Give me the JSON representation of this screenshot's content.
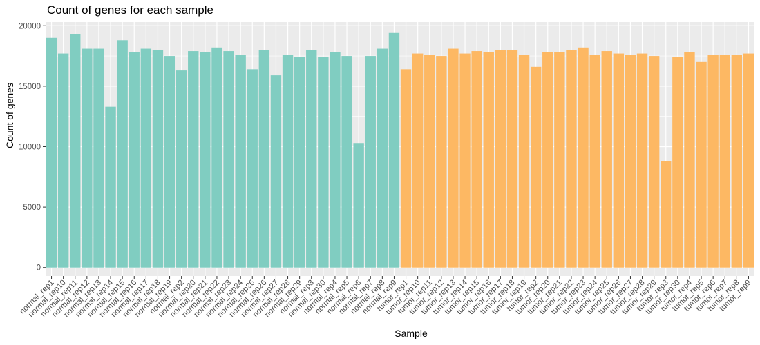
{
  "chart_data": {
    "type": "bar",
    "title": "Count of genes for each sample",
    "xlabel": "Sample",
    "ylabel": "Count of genes",
    "ylim": [
      -700,
      20300
    ],
    "yticks": [
      0,
      5000,
      10000,
      15000,
      20000
    ],
    "grid": true,
    "legend": "none",
    "categories": [
      "normal_rep1",
      "normal_rep10",
      "normal_rep11",
      "normal_rep12",
      "normal_rep13",
      "normal_rep14",
      "normal_rep15",
      "normal_rep16",
      "normal_rep17",
      "normal_rep18",
      "normal_rep19",
      "normal_rep2",
      "normal_rep20",
      "normal_rep21",
      "normal_rep22",
      "normal_rep23",
      "normal_rep24",
      "normal_rep25",
      "normal_rep26",
      "normal_rep27",
      "normal_rep28",
      "normal_rep29",
      "normal_rep3",
      "normal_rep30",
      "normal_rep4",
      "normal_rep5",
      "normal_rep6",
      "normal_rep7",
      "normal_rep8",
      "normal_rep9",
      "tumor_rep1",
      "tumor_rep10",
      "tumor_rep11",
      "tumor_rep12",
      "tumor_rep13",
      "tumor_rep14",
      "tumor_rep15",
      "tumor_rep16",
      "tumor_rep17",
      "tumor_rep18",
      "tumor_rep19",
      "tumor_rep2",
      "tumor_rep20",
      "tumor_rep21",
      "tumor_rep22",
      "tumor_rep23",
      "tumor_rep24",
      "tumor_rep25",
      "tumor_rep26",
      "tumor_rep27",
      "tumor_rep28",
      "tumor_rep29",
      "tumor_rep3",
      "tumor_rep30",
      "tumor_rep4",
      "tumor_rep5",
      "tumor_rep6",
      "tumor_rep7",
      "tumor_rep8",
      "tumor_rep9"
    ],
    "values": [
      19000,
      17700,
      19300,
      18100,
      18100,
      13300,
      18800,
      17800,
      18100,
      18000,
      17500,
      16300,
      17900,
      17800,
      18200,
      17900,
      17600,
      16400,
      18000,
      15900,
      17600,
      17400,
      18000,
      17400,
      17800,
      17500,
      10300,
      17500,
      18100,
      19400,
      16400,
      17700,
      17600,
      17500,
      18100,
      17700,
      17900,
      17800,
      18000,
      18000,
      17600,
      16600,
      17800,
      17800,
      18000,
      18200,
      17600,
      17900,
      17700,
      17600,
      17700,
      17500,
      8800,
      17400,
      17800,
      17000,
      17600,
      17600,
      17600,
      17700
    ],
    "colors": {
      "normal": "#80CDC1",
      "tumor": "#FDB863",
      "panel": "#EBEBEB",
      "grid": "#FFFFFF"
    }
  }
}
